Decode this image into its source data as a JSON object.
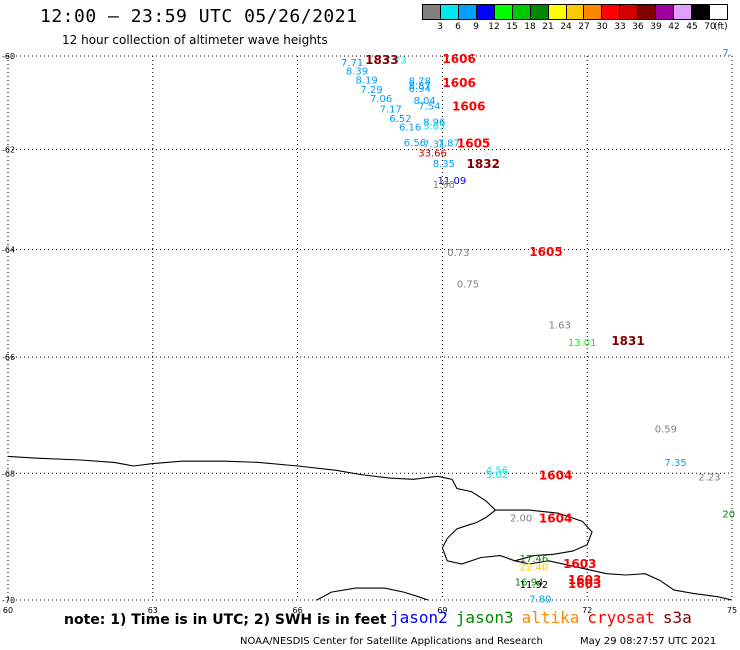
{
  "header": {
    "title": "12:00 – 23:59 UTC 05/26/2021",
    "subtitle": "12 hour collection of altimeter wave heights"
  },
  "color_scale": {
    "unit_label": "(ft)",
    "bins": [
      {
        "label": "3",
        "color": "#808080"
      },
      {
        "label": "6",
        "color": "#00e8f0"
      },
      {
        "label": "9",
        "color": "#00a0ff"
      },
      {
        "label": "12",
        "color": "#0000ff"
      },
      {
        "label": "15",
        "color": "#00ff00"
      },
      {
        "label": "18",
        "color": "#00c800"
      },
      {
        "label": "21",
        "color": "#008800"
      },
      {
        "label": "24",
        "color": "#ffff00"
      },
      {
        "label": "27",
        "color": "#ffc800"
      },
      {
        "label": "30",
        "color": "#ff8800"
      },
      {
        "label": "33",
        "color": "#ff0000"
      },
      {
        "label": "36",
        "color": "#d00000"
      },
      {
        "label": "39",
        "color": "#800000"
      },
      {
        "label": "42",
        "color": "#a000a0"
      },
      {
        "label": "45",
        "color": "#e0a0ff"
      },
      {
        "label": "70",
        "color": "#000000"
      }
    ]
  },
  "map": {
    "lon_range": [
      60,
      75
    ],
    "lat_range": [
      -60,
      -70
    ],
    "lat_ticks": [
      "-60",
      "-62",
      "-64",
      "-66",
      "-68",
      "-70"
    ],
    "lon_ticks": [
      "60",
      "63",
      "66",
      "69",
      "72",
      "75"
    ],
    "coastline": [
      [
        60.0,
        -67.72
      ],
      [
        60.6,
        -67.75
      ],
      [
        61.5,
        -67.78
      ],
      [
        62.2,
        -67.82
      ],
      [
        62.6,
        -67.88
      ],
      [
        63.0,
        -67.84
      ],
      [
        63.6,
        -67.8
      ],
      [
        64.5,
        -67.8
      ],
      [
        65.2,
        -67.82
      ],
      [
        66.0,
        -67.88
      ],
      [
        66.8,
        -67.95
      ],
      [
        67.3,
        -68.02
      ],
      [
        67.9,
        -68.08
      ],
      [
        68.4,
        -68.1
      ],
      [
        68.9,
        -68.05
      ],
      [
        69.2,
        -68.1
      ],
      [
        69.3,
        -68.25
      ],
      [
        69.6,
        -68.3
      ],
      [
        69.9,
        -68.45
      ],
      [
        70.1,
        -68.6
      ],
      [
        69.9,
        -68.72
      ],
      [
        69.7,
        -68.8
      ],
      [
        69.5,
        -68.85
      ],
      [
        69.3,
        -68.9
      ],
      [
        69.1,
        -69.05
      ],
      [
        69.0,
        -69.2
      ],
      [
        69.1,
        -69.4
      ],
      [
        69.4,
        -69.45
      ],
      [
        69.8,
        -69.35
      ],
      [
        70.2,
        -69.32
      ],
      [
        70.5,
        -69.4
      ],
      [
        70.8,
        -69.45
      ],
      [
        71.2,
        -69.4
      ],
      [
        71.8,
        -69.5
      ],
      [
        72.4,
        -69.6
      ],
      [
        72.8,
        -69.62
      ],
      [
        73.2,
        -69.6
      ],
      [
        73.5,
        -69.7
      ],
      [
        73.8,
        -69.85
      ],
      [
        74.2,
        -69.9
      ],
      [
        74.7,
        -69.95
      ],
      [
        75.0,
        -70.0
      ]
    ],
    "coastline2": [
      [
        66.4,
        -70.0
      ],
      [
        66.7,
        -69.88
      ],
      [
        67.2,
        -69.82
      ],
      [
        67.8,
        -69.82
      ],
      [
        68.2,
        -69.88
      ],
      [
        68.5,
        -69.95
      ],
      [
        68.7,
        -70.0
      ]
    ],
    "shelf": [
      [
        70.1,
        -68.6
      ],
      [
        70.8,
        -68.6
      ],
      [
        71.4,
        -68.65
      ],
      [
        71.9,
        -68.78
      ],
      [
        72.1,
        -68.95
      ],
      [
        72.0,
        -69.15
      ],
      [
        71.7,
        -69.25
      ],
      [
        71.3,
        -69.3
      ],
      [
        70.9,
        -69.32
      ],
      [
        70.5,
        -69.4
      ]
    ],
    "times": [
      {
        "text": "1833",
        "color": "#800000",
        "lon": 67.4,
        "lat": -60.18
      },
      {
        "text": "1606",
        "color": "#ff0000",
        "lon": 69.0,
        "lat": -60.15
      },
      {
        "text": "1606",
        "color": "#ff0000",
        "lon": 69.0,
        "lat": -60.68
      },
      {
        "text": "1606",
        "color": "#ff0000",
        "lon": 69.2,
        "lat": -61.18
      },
      {
        "text": "1605",
        "color": "#ff0000",
        "lon": 69.3,
        "lat": -61.96
      },
      {
        "text": "1832",
        "color": "#800000",
        "lon": 69.5,
        "lat": -62.38
      },
      {
        "text": "1605",
        "color": "#ff0000",
        "lon": 70.8,
        "lat": -64.12
      },
      {
        "text": "1831",
        "color": "#800000",
        "lon": 72.5,
        "lat": -65.78
      },
      {
        "text": "1604",
        "color": "#ff0000",
        "lon": 71.0,
        "lat": -68.1
      },
      {
        "text": "1604",
        "color": "#ff0000",
        "lon": 71.0,
        "lat": -68.8
      },
      {
        "text": "1603",
        "color": "#ff0000",
        "lon": 71.5,
        "lat": -69.51
      },
      {
        "text": "1603",
        "color": "#ff0000",
        "lon": 71.6,
        "lat": -69.76
      },
      {
        "text": "1603",
        "color": "#ff0000",
        "lon": 71.6,
        "lat": -69.82
      }
    ],
    "heights": [
      {
        "text": "7.71",
        "color": "#00a0ff",
        "lon": 66.9,
        "lat": -60.22
      },
      {
        "text": "7.73",
        "color": "#00e8f0",
        "lon": 67.8,
        "lat": -60.16
      },
      {
        "text": "8.39",
        "color": "#00a0ff",
        "lon": 67.0,
        "lat": -60.4
      },
      {
        "text": "8.19",
        "color": "#00a0ff",
        "lon": 67.2,
        "lat": -60.6
      },
      {
        "text": "8.78",
        "color": "#00a0ff",
        "lon": 68.3,
        "lat": -60.62
      },
      {
        "text": "7.29",
        "color": "#00a0ff",
        "lon": 67.3,
        "lat": -60.8
      },
      {
        "text": "8.87",
        "color": "#00a0ff",
        "lon": 68.3,
        "lat": -60.72
      },
      {
        "text": "6.94",
        "color": "#00a0ff",
        "lon": 68.3,
        "lat": -60.78
      },
      {
        "text": "7.06",
        "color": "#00a0ff",
        "lon": 67.5,
        "lat": -61.0
      },
      {
        "text": "8.04",
        "color": "#00a0ff",
        "lon": 68.4,
        "lat": -61.04
      },
      {
        "text": "7.17",
        "color": "#00a0ff",
        "lon": 67.7,
        "lat": -61.22
      },
      {
        "text": "7.54",
        "color": "#00a0ff",
        "lon": 68.5,
        "lat": -61.16
      },
      {
        "text": "6.52",
        "color": "#00a0ff",
        "lon": 67.9,
        "lat": -61.42
      },
      {
        "text": "8.96",
        "color": "#00a0ff",
        "lon": 68.6,
        "lat": -61.5
      },
      {
        "text": "6.16",
        "color": "#00a0ff",
        "lon": 68.1,
        "lat": -61.6
      },
      {
        "text": "5.65",
        "color": "#00e8f0",
        "lon": 68.6,
        "lat": -61.58
      },
      {
        "text": "6.56",
        "color": "#00a0ff",
        "lon": 68.2,
        "lat": -61.92
      },
      {
        "text": "7.31",
        "color": "#00a0ff",
        "lon": 68.6,
        "lat": -61.96
      },
      {
        "text": "7.87",
        "color": "#00a0ff",
        "lon": 68.9,
        "lat": -61.94
      },
      {
        "text": "33.66",
        "color": "#d00000",
        "lon": 68.5,
        "lat": -62.14
      },
      {
        "text": "8.35",
        "color": "#00a0ff",
        "lon": 68.8,
        "lat": -62.36
      },
      {
        "text": "11.09",
        "color": "#0000ff",
        "lon": 68.9,
        "lat": -62.7
      },
      {
        "text": "1.90",
        "color": "#808080",
        "lon": 68.8,
        "lat": -62.78
      },
      {
        "text": "0.73",
        "color": "#808080",
        "lon": 69.1,
        "lat": -64.12
      },
      {
        "text": "0.75",
        "color": "#808080",
        "lon": 69.3,
        "lat": -64.72
      },
      {
        "text": "1.63",
        "color": "#808080",
        "lon": 71.2,
        "lat": -65.48
      },
      {
        "text": "13.01",
        "color": "#00ff00",
        "lon": 71.6,
        "lat": -65.8
      },
      {
        "text": "0.59",
        "color": "#808080",
        "lon": 73.4,
        "lat": -67.32
      },
      {
        "text": "7.35",
        "color": "#00a0ff",
        "lon": 73.6,
        "lat": -67.88
      },
      {
        "text": "2.23",
        "color": "#808080",
        "lon": 74.3,
        "lat": -68.12
      },
      {
        "text": "7.",
        "color": "#00a0ff",
        "lon": 74.8,
        "lat": -60.0
      },
      {
        "text": "20",
        "color": "#008800",
        "lon": 74.8,
        "lat": -68.72
      },
      {
        "text": "4.56",
        "color": "#00e8f0",
        "lon": 69.9,
        "lat": -68.0
      },
      {
        "text": "5.02",
        "color": "#00e8f0",
        "lon": 69.9,
        "lat": -68.08
      },
      {
        "text": "2.00",
        "color": "#808080",
        "lon": 70.4,
        "lat": -68.78
      },
      {
        "text": "17.46",
        "color": "#008800",
        "lon": 70.6,
        "lat": -69.42
      },
      {
        "text": "22.40",
        "color": "#ffc800",
        "lon": 70.6,
        "lat": -69.55
      },
      {
        "text": "16.94",
        "color": "#008800",
        "lon": 70.5,
        "lat": -69.78
      },
      {
        "text": "11.92",
        "color": "#000000",
        "lon": 70.6,
        "lat": -69.82
      },
      {
        "text": "7.80",
        "color": "#00a0ff",
        "lon": 70.8,
        "lat": -70.04
      }
    ]
  },
  "footer": {
    "note": "note: 1) Time is in UTC; 2) SWH is in feet",
    "satellites": [
      {
        "label": "jason2",
        "color": "#0000ff"
      },
      {
        "label": "jason3",
        "color": "#008800"
      },
      {
        "label": "altika",
        "color": "#ff8800"
      },
      {
        "label": "cryosat",
        "color": "#ff0000"
      },
      {
        "label": "s3a",
        "color": "#800000"
      }
    ],
    "credit": "NOAA/NESDIS Center for Satellite Applications and Research",
    "timestamp": "May 29 08:27:57 UTC 2021"
  }
}
